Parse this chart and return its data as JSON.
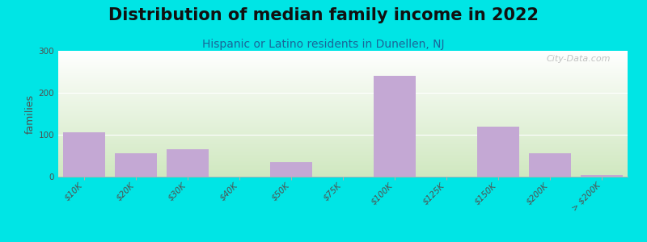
{
  "title": "Distribution of median family income in 2022",
  "subtitle": "Hispanic or Latino residents in Dunellen, NJ",
  "ylabel": "families",
  "categories": [
    "$10K",
    "$20K",
    "$30K",
    "$40K",
    "$50K",
    "$75K",
    "$100K",
    "$125K",
    "$150K",
    "$200K",
    "> $200K"
  ],
  "values": [
    105,
    55,
    65,
    0,
    35,
    0,
    240,
    0,
    120,
    55,
    3
  ],
  "bar_color": "#c4a8d4",
  "ylim": [
    0,
    300
  ],
  "yticks": [
    0,
    100,
    200,
    300
  ],
  "bg_top": "#ffffff",
  "bg_bottom": "#d0e8c0",
  "outer_bg": "#00e5e5",
  "title_fontsize": 15,
  "subtitle_fontsize": 10,
  "watermark": "City-Data.com",
  "ylabel_fontsize": 9,
  "tick_fontsize": 7.5
}
